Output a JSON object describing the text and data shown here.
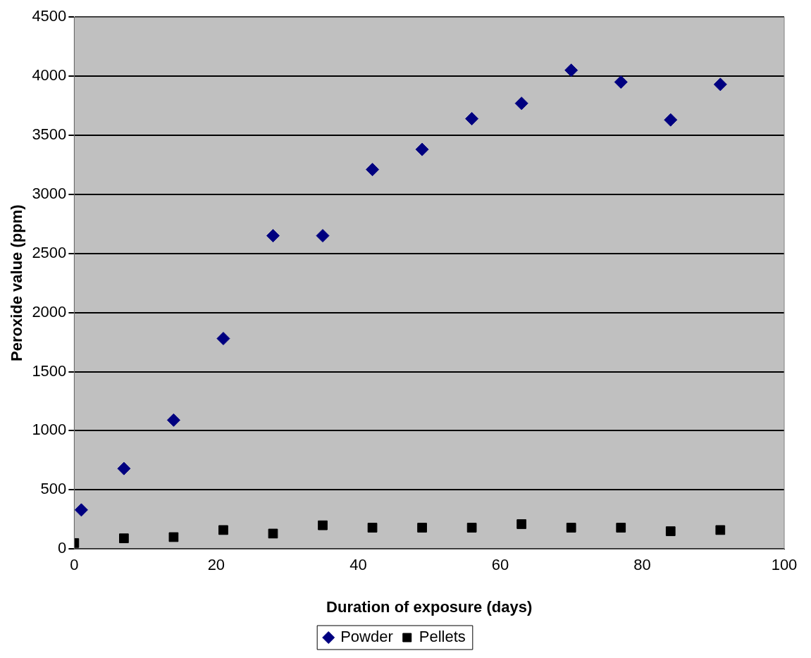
{
  "chart_data": {
    "type": "scatter",
    "xlabel": "Duration of exposure (days)",
    "ylabel": "Peroxide value (ppm)",
    "xlim": [
      0,
      100
    ],
    "xticks": [
      0,
      20,
      40,
      60,
      80,
      100
    ],
    "ylim": [
      0,
      4500
    ],
    "yticks": [
      0,
      500,
      1000,
      1500,
      2000,
      2500,
      3000,
      3500,
      4000,
      4500
    ],
    "grid": "y",
    "legend": "bottom",
    "series": [
      {
        "name": "Powder",
        "color": "#000080",
        "marker": "diamond",
        "x": [
          1,
          7,
          14,
          21,
          28,
          35,
          42,
          49,
          56,
          63,
          70,
          77,
          84,
          91
        ],
        "values": [
          330,
          680,
          1090,
          1780,
          2650,
          2650,
          3210,
          3380,
          3640,
          3770,
          4050,
          3950,
          3630,
          3930
        ]
      },
      {
        "name": "Pellets",
        "color": "#000000",
        "marker": "square",
        "x": [
          0,
          7,
          14,
          21,
          28,
          35,
          42,
          49,
          56,
          63,
          70,
          77,
          84,
          91
        ],
        "values": [
          50,
          90,
          100,
          160,
          130,
          200,
          180,
          180,
          180,
          210,
          180,
          180,
          150,
          160
        ]
      }
    ]
  }
}
